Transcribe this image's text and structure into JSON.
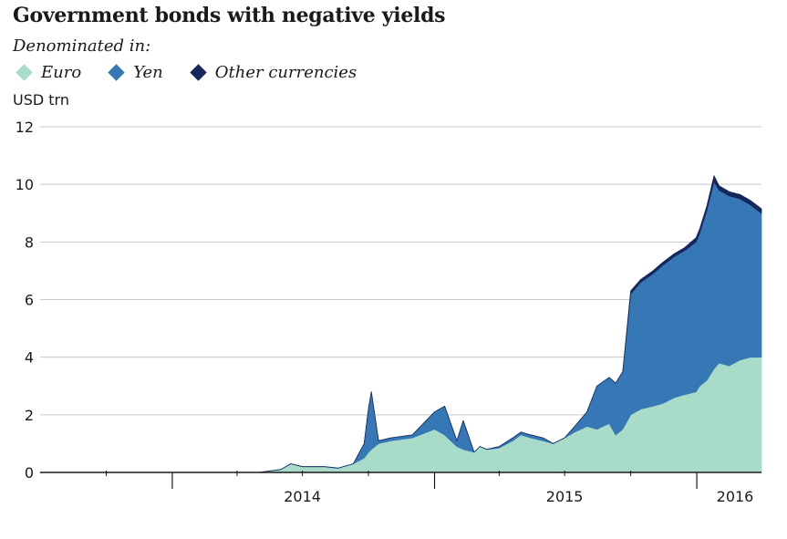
{
  "title": "Government bonds with negative yields",
  "subtitle": "Denominated in:",
  "unit_label": "USD trn",
  "legend": [
    {
      "label": "Euro",
      "color": "#a8dcc8"
    },
    {
      "label": "Yen",
      "color": "#3578b5"
    },
    {
      "label": "Other currencies",
      "color": "#15275c"
    }
  ],
  "chart_data": {
    "type": "area",
    "stacked": true,
    "title": "Government bonds with negative yields",
    "subtitle": "Denominated in:",
    "ylabel": "USD trn",
    "ylim": [
      0,
      12
    ],
    "yticks": [
      0,
      2,
      4,
      6,
      8,
      10,
      12
    ],
    "grid": true,
    "legend_position": "top-left",
    "x_domain": [
      "2013-07-01",
      "2016-03-31"
    ],
    "x_ticks": [
      "2014",
      "2015",
      "2016"
    ],
    "x_dates": [
      "2013-07-01",
      "2014-01-01",
      "2014-05-01",
      "2014-06-01",
      "2014-06-15",
      "2014-07-01",
      "2014-08-01",
      "2014-08-20",
      "2014-09-10",
      "2014-09-25",
      "2014-10-01",
      "2014-10-05",
      "2014-10-15",
      "2014-11-01",
      "2014-12-01",
      "2015-01-01",
      "2015-01-15",
      "2015-02-01",
      "2015-02-10",
      "2015-02-25",
      "2015-03-05",
      "2015-03-15",
      "2015-04-01",
      "2015-04-20",
      "2015-05-01",
      "2015-05-15",
      "2015-06-01",
      "2015-06-15",
      "2015-07-01",
      "2015-07-15",
      "2015-08-01",
      "2015-08-15",
      "2015-09-01",
      "2015-09-10",
      "2015-09-20",
      "2015-10-01",
      "2015-10-15",
      "2015-11-01",
      "2015-11-15",
      "2015-12-01",
      "2015-12-15",
      "2015-12-31",
      "2016-01-05",
      "2016-01-15",
      "2016-01-25",
      "2016-02-01",
      "2016-02-15",
      "2016-03-01",
      "2016-03-15",
      "2016-03-31"
    ],
    "series": [
      {
        "name": "Euro",
        "color": "#a8dcc8",
        "values": [
          0,
          0,
          0,
          0.1,
          0.3,
          0.2,
          0.2,
          0.15,
          0.3,
          0.5,
          0.7,
          0.8,
          1.0,
          1.1,
          1.2,
          1.5,
          1.3,
          0.9,
          0.8,
          0.7,
          0.9,
          0.8,
          0.85,
          1.1,
          1.3,
          1.2,
          1.1,
          1.0,
          1.2,
          1.4,
          1.6,
          1.5,
          1.7,
          1.3,
          1.5,
          2.0,
          2.2,
          2.3,
          2.4,
          2.6,
          2.7,
          2.8,
          3.0,
          3.2,
          3.6,
          3.8,
          3.7,
          3.9,
          4.0,
          4.0
        ]
      },
      {
        "name": "Yen",
        "color": "#3578b5",
        "values": [
          0,
          0,
          0,
          0,
          0,
          0,
          0,
          0,
          0,
          0.5,
          1.5,
          2.0,
          0.1,
          0.1,
          0.1,
          0.6,
          1.0,
          0.2,
          1.0,
          0,
          0,
          0,
          0.05,
          0.1,
          0.1,
          0.1,
          0.1,
          0,
          0,
          0.2,
          0.5,
          1.5,
          1.6,
          1.8,
          2.0,
          4.2,
          4.4,
          4.6,
          4.8,
          4.9,
          5.0,
          5.2,
          5.3,
          5.9,
          6.5,
          6.0,
          5.9,
          5.6,
          5.3,
          5.0
        ]
      },
      {
        "name": "Other currencies",
        "color": "#15275c",
        "values": [
          0,
          0,
          0,
          0,
          0,
          0,
          0,
          0,
          0,
          0,
          0,
          0,
          0,
          0,
          0,
          0,
          0,
          0,
          0,
          0,
          0,
          0,
          0,
          0,
          0,
          0,
          0,
          0,
          0,
          0,
          0,
          0,
          0,
          0,
          0,
          0.1,
          0.1,
          0.1,
          0.1,
          0.1,
          0.1,
          0.15,
          0.15,
          0.15,
          0.2,
          0.15,
          0.15,
          0.15,
          0.15,
          0.15
        ]
      }
    ]
  }
}
